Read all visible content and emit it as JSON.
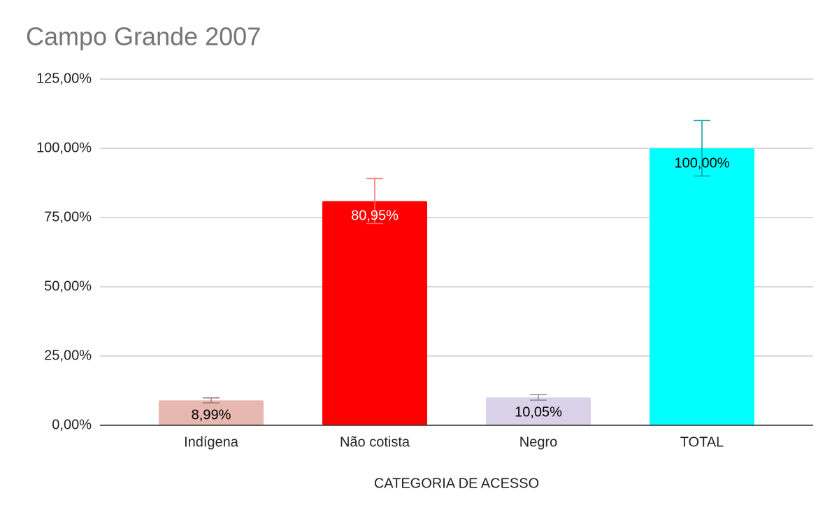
{
  "chart_data": {
    "type": "bar",
    "title": "Campo Grande 2007",
    "x_label": "CATEGORIA DE ACESSO",
    "categories": [
      "Indígena",
      "Não cotista",
      "Negro",
      "TOTAL"
    ],
    "values": [
      8.99,
      80.95,
      10.05,
      100
    ],
    "value_labels": [
      "8,99%",
      "80,95%",
      "10,05%",
      "100,00%"
    ],
    "errors": [
      0.9,
      8.1,
      1.0,
      10
    ],
    "colors": [
      "#e6b8af",
      "#ff0000",
      "#d9d2e9",
      "#00ffff"
    ],
    "error_colors": [
      "#a07a74",
      "#ff6b6b",
      "#8e889c",
      "#00a0a0"
    ],
    "value_label_colors": [
      "#000000",
      "#ffffff",
      "#000000",
      "#000000"
    ],
    "ylim": [
      0,
      125
    ],
    "yticks": [
      {
        "value": 0,
        "label": "0,00%"
      },
      {
        "value": 25,
        "label": "25,00%"
      },
      {
        "value": 50,
        "label": "50,00%"
      },
      {
        "value": 75,
        "label": "75,00%"
      },
      {
        "value": 100,
        "label": "100,00%"
      },
      {
        "value": 125,
        "label": "125,00%"
      }
    ],
    "grid": true
  }
}
